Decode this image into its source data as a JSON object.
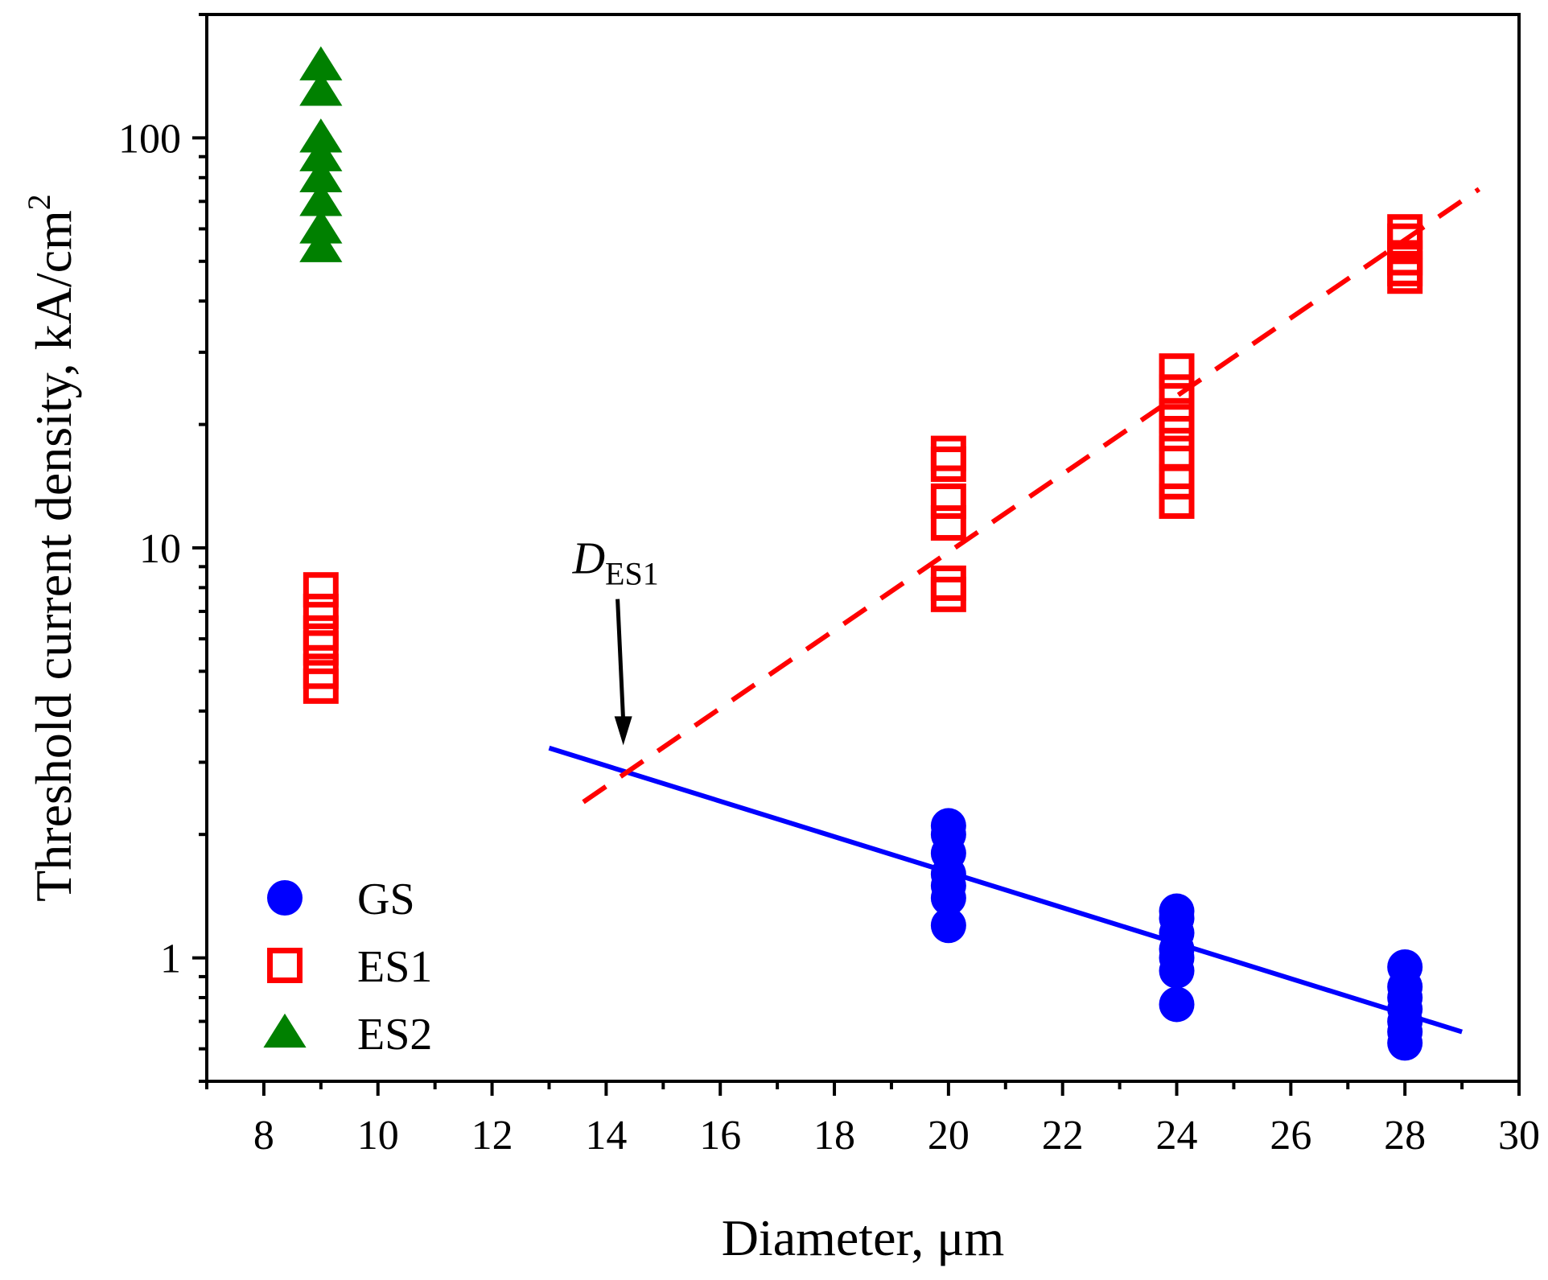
{
  "chart_data": {
    "type": "scatter",
    "xlabel": "Diameter, μm",
    "ylabel": {
      "prefix": "Threshold current density, kA/cm",
      "superscript": "2"
    },
    "xlim": [
      7,
      30
    ],
    "ylim": [
      0.5,
      200
    ],
    "yscale": "log",
    "x_ticks": [
      8,
      10,
      12,
      14,
      16,
      18,
      20,
      22,
      24,
      26,
      28,
      30
    ],
    "y_ticks": [
      1,
      10,
      100
    ],
    "series": [
      {
        "name": "GS",
        "marker": "filled-circle",
        "color": "#0000ff",
        "points": [
          [
            20,
            1.2
          ],
          [
            20,
            1.4
          ],
          [
            20,
            1.5
          ],
          [
            20,
            1.6
          ],
          [
            20,
            1.8
          ],
          [
            20,
            2.0
          ],
          [
            20,
            2.1
          ],
          [
            24,
            0.77
          ],
          [
            24,
            0.93
          ],
          [
            24,
            1.0
          ],
          [
            24,
            1.05
          ],
          [
            24,
            1.15
          ],
          [
            24,
            1.25
          ],
          [
            24,
            1.3
          ],
          [
            28,
            0.62
          ],
          [
            28,
            0.66
          ],
          [
            28,
            0.7
          ],
          [
            28,
            0.75
          ],
          [
            28,
            0.8
          ],
          [
            28,
            0.85
          ],
          [
            28,
            0.95
          ]
        ]
      },
      {
        "name": "ES1",
        "marker": "open-square",
        "color": "#ff0000",
        "points": [
          [
            9,
            4.6
          ],
          [
            9,
            5.0
          ],
          [
            9,
            5.7
          ],
          [
            9,
            6.2
          ],
          [
            9,
            7.0
          ],
          [
            9,
            7.9
          ],
          [
            20,
            7.7
          ],
          [
            20,
            8.2
          ],
          [
            20,
            11.5
          ],
          [
            20,
            13.0
          ],
          [
            20,
            16.0
          ],
          [
            20,
            17.0
          ],
          [
            24,
            13.0
          ],
          [
            24,
            14.5
          ],
          [
            24,
            17.0
          ],
          [
            24,
            19.0
          ],
          [
            24,
            21.0
          ],
          [
            24,
            24.0
          ],
          [
            24,
            27.0
          ],
          [
            28,
            46.0
          ],
          [
            28,
            48.0
          ],
          [
            28,
            51.0
          ],
          [
            28,
            56.0
          ],
          [
            28,
            59.0
          ]
        ]
      },
      {
        "name": "ES2",
        "marker": "filled-triangle",
        "color": "#008000",
        "points": [
          [
            9,
            54
          ],
          [
            9,
            60
          ],
          [
            9,
            70
          ],
          [
            9,
            80
          ],
          [
            9,
            90
          ],
          [
            9,
            100
          ],
          [
            9,
            130
          ],
          [
            9,
            150
          ]
        ]
      }
    ],
    "fits": [
      {
        "name": "GS fit",
        "style": "solid",
        "color": "#0000ff",
        "x": [
          13,
          29
        ],
        "y": [
          3.25,
          0.66
        ]
      },
      {
        "name": "ES1 fit",
        "style": "dashed",
        "color": "#ff0000",
        "x": [
          13.6,
          29.3
        ],
        "y": [
          2.4,
          75
        ]
      }
    ],
    "annotation": {
      "main": "D",
      "subscript": "ES1",
      "arrow_from": [
        14.2,
        7.5
      ],
      "arrow_to": [
        14.3,
        3.3
      ]
    },
    "legend": {
      "placement": "bottom-left",
      "entries": [
        {
          "label": "GS",
          "marker": "filled-circle",
          "color": "#0000ff"
        },
        {
          "label": "ES1",
          "marker": "open-square",
          "color": "#ff0000"
        },
        {
          "label": "ES2",
          "marker": "filled-triangle",
          "color": "#008000"
        }
      ]
    }
  }
}
